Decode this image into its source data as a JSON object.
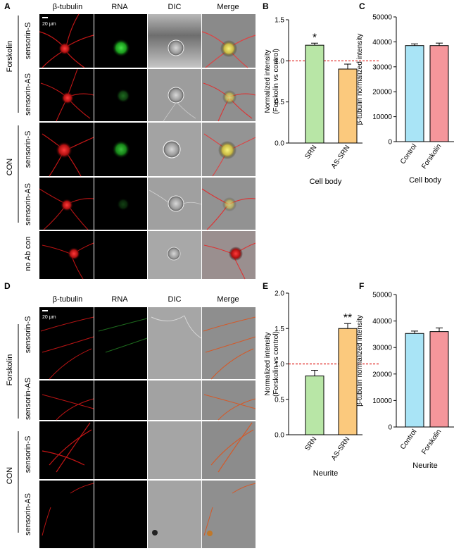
{
  "panel_letters": {
    "a": "A",
    "b": "B",
    "c": "C",
    "d": "D",
    "e": "E",
    "f": "F"
  },
  "micrograph_top": {
    "columns": [
      "β-tubulin",
      "RNA",
      "DIC",
      "Merge"
    ],
    "scale_bar": "20 μm",
    "rows": [
      "sensorin-S",
      "sensorin-AS",
      "sensorin-S",
      "sensorin-AS",
      "no Ab con"
    ],
    "groups": [
      "Forskolin",
      "CON"
    ]
  },
  "micrograph_bottom": {
    "columns": [
      "β-tubulin",
      "RNA",
      "DIC",
      "Merge"
    ],
    "scale_bar": "20 μm",
    "rows": [
      "sensorin-S",
      "sensorin-AS",
      "sensorin-S",
      "sensorin-AS"
    ],
    "groups": [
      "Forskolin",
      "CON"
    ]
  },
  "colors": {
    "srn": "#b8e6a6",
    "as_srn": "#fbc97d",
    "control": "#a9e4f6",
    "forskolin": "#f5969b",
    "reference_line": "#e0201b"
  },
  "chart_data": [
    {
      "panel": "B",
      "type": "bar",
      "categories": [
        "SRN",
        "AS-SRN"
      ],
      "values": [
        1.19,
        0.9
      ],
      "errors": [
        0.025,
        0.06
      ],
      "ylabel": "Normalized intensity (Forskolin vs control)",
      "ylabel_lines": [
        "Normalized intensity",
        "(Forskolin vs control)"
      ],
      "xlabel": "Cell body",
      "ylim": [
        0,
        1.5
      ],
      "yticks": [
        "0.0",
        "0.5",
        "1.0",
        "1.5"
      ],
      "reference_line": 1.0,
      "annotations": [
        "*",
        ""
      ]
    },
    {
      "panel": "C",
      "type": "bar",
      "categories": [
        "Control",
        "Forskolin"
      ],
      "values": [
        38500,
        38500
      ],
      "errors": [
        700,
        1000
      ],
      "ylabel": "β-tubulin normalized intensity",
      "xlabel": "Cell body",
      "ylim": [
        0,
        50000
      ],
      "yticks": [
        "0",
        "10000",
        "20000",
        "30000",
        "40000",
        "50000"
      ]
    },
    {
      "panel": "E",
      "type": "bar",
      "categories": [
        "SRN",
        "AS-SRN"
      ],
      "values": [
        0.83,
        1.5
      ],
      "errors": [
        0.08,
        0.07
      ],
      "ylabel": "Normalized intensity (Forskolin vs control)",
      "ylabel_lines": [
        "Normalized intensity",
        "(Forskolin vs control)"
      ],
      "xlabel": "Neurite",
      "ylim": [
        0,
        2.0
      ],
      "yticks": [
        "0.0",
        "0.5",
        "1.0",
        "1.5",
        "2.0"
      ],
      "reference_line": 1.0,
      "annotations": [
        "",
        "**"
      ]
    },
    {
      "panel": "F",
      "type": "bar",
      "categories": [
        "Control",
        "Forskolin"
      ],
      "values": [
        35300,
        36000
      ],
      "errors": [
        900,
        1400
      ],
      "ylabel": "β-tubulin normalized intensity",
      "xlabel": "Neurite",
      "ylim": [
        0,
        50000
      ],
      "yticks": [
        "0",
        "10000",
        "20000",
        "30000",
        "40000",
        "50000"
      ]
    }
  ]
}
